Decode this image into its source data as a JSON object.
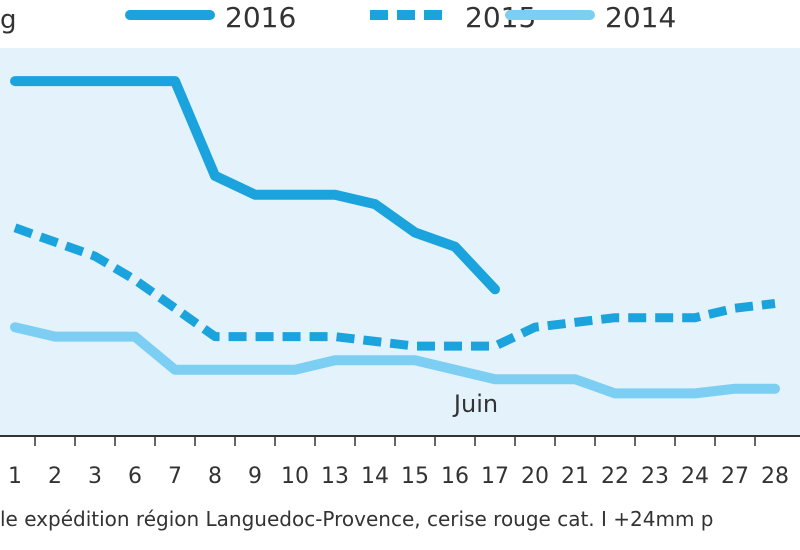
{
  "chart_data": {
    "type": "line",
    "unit_fragment": "g",
    "month_label": "Juin",
    "footer": "le expédition région Languedoc-Provence, cerise rouge cat. I +24mm p",
    "categories": [
      "1",
      "2",
      "3",
      "6",
      "7",
      "8",
      "9",
      "10",
      "13",
      "14",
      "15",
      "16",
      "17",
      "20",
      "21",
      "22",
      "23",
      "24",
      "27",
      "28"
    ],
    "series": [
      {
        "name": "2016",
        "color": "#1aa3dc",
        "style": "solid",
        "values": [
          7.5,
          7.5,
          7.5,
          7.5,
          7.5,
          5.5,
          5.1,
          5.1,
          5.1,
          4.9,
          4.3,
          4.0,
          3.1,
          null,
          null,
          null,
          null,
          null,
          null,
          null
        ]
      },
      {
        "name": "2015",
        "color": "#1aa3dc",
        "style": "dashed",
        "values": [
          4.4,
          4.1,
          3.8,
          3.3,
          2.7,
          2.1,
          2.1,
          2.1,
          2.1,
          2.0,
          1.9,
          1.9,
          1.9,
          2.3,
          2.4,
          2.5,
          2.5,
          2.5,
          2.7,
          2.8
        ]
      },
      {
        "name": "2014",
        "color": "#7ccef2",
        "style": "solid",
        "values": [
          2.3,
          2.1,
          2.1,
          2.1,
          1.4,
          1.4,
          1.4,
          1.4,
          1.6,
          1.6,
          1.6,
          1.4,
          1.2,
          1.2,
          1.2,
          0.9,
          0.9,
          0.9,
          1.0,
          1.0
        ]
      }
    ],
    "ylim": [
      0,
      8.2
    ],
    "grid": false,
    "legend": "top"
  }
}
